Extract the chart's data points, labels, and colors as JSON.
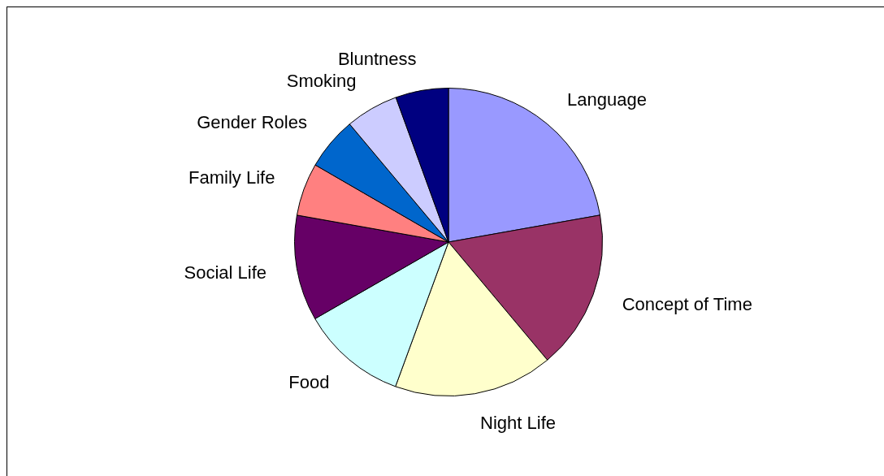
{
  "chart_data": {
    "type": "pie",
    "categories": [
      "Language",
      "Concept of Time",
      "Night Life",
      "Food",
      "Social Life",
      "Family Life",
      "Gender Roles",
      "Smoking",
      "Bluntness"
    ],
    "values": [
      22.2,
      16.7,
      16.7,
      11.1,
      11.1,
      5.55,
      5.55,
      5.55,
      5.55
    ],
    "colors": [
      "#9999ff",
      "#993366",
      "#ffffcc",
      "#ccffff",
      "#660066",
      "#ff8080",
      "#0066cc",
      "#ccccff",
      "#000080"
    ],
    "legend": false
  }
}
